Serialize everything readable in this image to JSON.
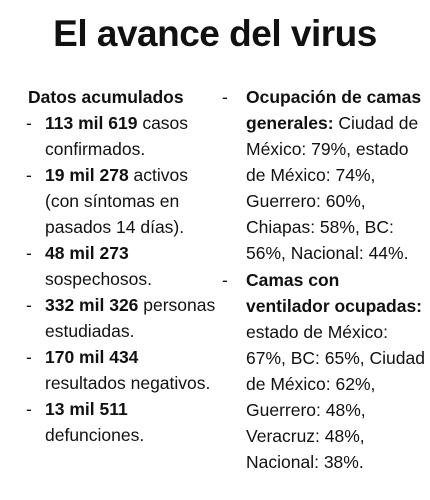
{
  "title": "El avance del virus",
  "bullet_glyph": "-",
  "left": {
    "heading": "Datos acumulados",
    "items": [
      {
        "value": "113 mil 619",
        "text": " casos confirmados."
      },
      {
        "value": "19 mil 278",
        "text": " activos (con síntomas en pasados 14 días)."
      },
      {
        "value": "48 mil 273",
        "text": " sospechosos."
      },
      {
        "value": "332 mil 326",
        "text": " personas estudiadas."
      },
      {
        "value": "170 mil 434",
        "text": " resultados negativos."
      },
      {
        "value": "13 mil 511",
        "text": " defunciones."
      }
    ]
  },
  "right": {
    "items": [
      {
        "heading": "Ocupación de camas generales:",
        "text": " Ciudad de México: 79%, estado de México: 74%, Guerrero: 60%, Chiapas: 58%, BC: 56%, Nacional: 44%."
      },
      {
        "heading": "Camas con ventilador ocupadas:",
        "text": " estado de México: 67%, BC: 65%, Ciudad de México: 62%, Guerrero: 48%, Veracruz: 48%, Nacional: 38%."
      }
    ]
  }
}
